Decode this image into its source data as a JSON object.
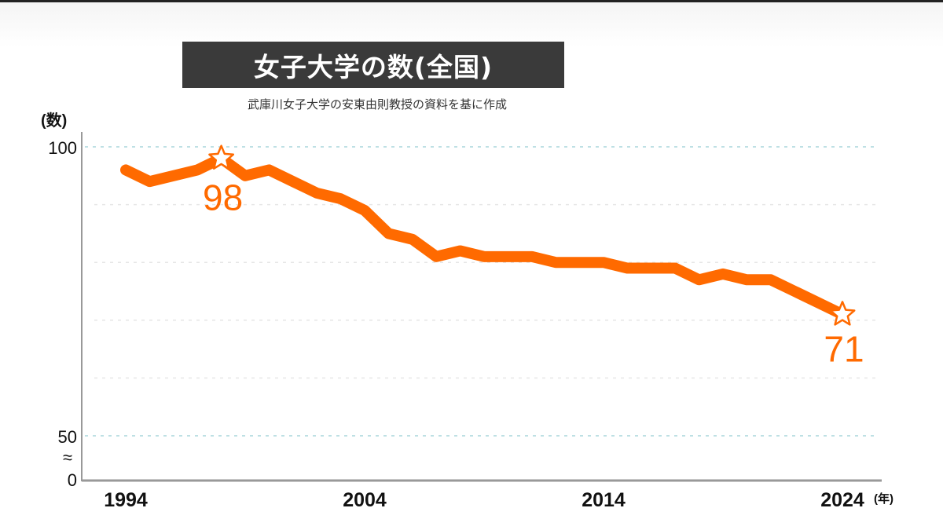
{
  "title": "女子大学の数(全国)",
  "source": "武庫川女子大学の安東由則教授の資料を基に作成",
  "colors": {
    "line": "#ff6a00",
    "grid_major": "#a9d6dc",
    "grid_minor": "#e6e6e6",
    "axis": "#999999",
    "title_bg": "#3a3a3a"
  },
  "chart_data": {
    "type": "line",
    "title": "女子大学の数(全国)",
    "ylabel": "(数)",
    "xlabel_unit": "(年)",
    "yticks": [
      "100",
      "50",
      "0"
    ],
    "axis_break": "≈",
    "xticks": [
      "1994",
      "2004",
      "2014",
      "2024"
    ],
    "ylim": [
      50,
      100
    ],
    "x": [
      1994,
      1995,
      1996,
      1997,
      1998,
      1999,
      2000,
      2001,
      2002,
      2003,
      2004,
      2005,
      2006,
      2007,
      2008,
      2009,
      2010,
      2011,
      2012,
      2013,
      2014,
      2015,
      2016,
      2017,
      2018,
      2019,
      2020,
      2021,
      2022,
      2023,
      2024
    ],
    "values": [
      96,
      94,
      95,
      96,
      98,
      95,
      96,
      94,
      92,
      91,
      89,
      85,
      84,
      81,
      82,
      81,
      81,
      81,
      80,
      80,
      80,
      79,
      79,
      79,
      77,
      78,
      77,
      77,
      75,
      73,
      71
    ],
    "annotations": [
      {
        "x": 1998,
        "label": "98",
        "marker": "star"
      },
      {
        "x": 2024,
        "label": "71",
        "marker": "star"
      }
    ]
  }
}
